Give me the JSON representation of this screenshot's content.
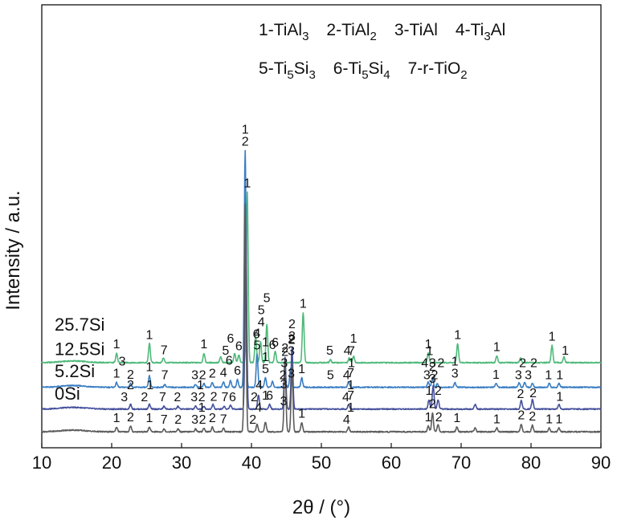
{
  "chart_data": {
    "type": "line",
    "title": "",
    "xlabel": "2θ / (°)",
    "ylabel": "Intensity / a.u.",
    "xlim": [
      10,
      90
    ],
    "xticks": [
      "10",
      "20",
      "30",
      "40",
      "50",
      "60",
      "70",
      "80",
      "90"
    ],
    "yticks_visible": false,
    "legend": {
      "placement": "top-right",
      "lines": [
        [
          {
            "n": "1",
            "txt": "TiAl",
            "sub": "3"
          },
          {
            "n": "2",
            "txt": "TiAl",
            "sub": "2"
          },
          {
            "n": "3",
            "txt": "TiAl",
            "sub": ""
          },
          {
            "n": "4",
            "txt": "Ti",
            "sub": "3",
            "txt2": "Al"
          }
        ],
        [
          {
            "n": "5",
            "txt": "Ti",
            "sub": "5",
            "txt2": "Si",
            "sub2": "3"
          },
          {
            "n": "6",
            "txt": "Ti",
            "sub": "5",
            "txt2": "Si",
            "sub2": "4"
          },
          {
            "n": "7",
            "txt": "r-TiO",
            "sub": "2"
          }
        ]
      ]
    },
    "series": [
      {
        "name": "25.7Si",
        "color": "#4fb97a",
        "baseline": 0.78,
        "peaks": [
          [
            20.7,
            0.1
          ],
          [
            25.4,
            0.2
          ],
          [
            27.4,
            0.05
          ],
          [
            33.2,
            0.1
          ],
          [
            35.6,
            0.06
          ],
          [
            37.6,
            0.1
          ],
          [
            38.2,
            0.08
          ],
          [
            39.4,
            1.8
          ],
          [
            40.6,
            0.28
          ],
          [
            41.3,
            0.22
          ],
          [
            42.2,
            0.4
          ],
          [
            43.4,
            0.12
          ],
          [
            47.4,
            0.53
          ],
          [
            51.3,
            0.03
          ],
          [
            54.0,
            0.05
          ],
          [
            54.6,
            0.07
          ],
          [
            65.3,
            0.1
          ],
          [
            69.5,
            0.2
          ],
          [
            75.1,
            0.07
          ],
          [
            78.5,
            0.05
          ],
          [
            83.0,
            0.18
          ],
          [
            84.7,
            0.06
          ]
        ],
        "peak_labels": [
          {
            "x": 20.7,
            "label": "1"
          },
          {
            "x": 25.4,
            "label": "1"
          },
          {
            "x": 27.5,
            "label": "7"
          },
          {
            "x": 33.2,
            "label": "1"
          },
          {
            "x": 36.3,
            "label": "5"
          },
          {
            "x": 37.0,
            "label": "6"
          },
          {
            "x": 38.2,
            "label": "6"
          },
          {
            "x": 39.4,
            "label": "1"
          },
          {
            "x": 40.7,
            "label": "6"
          },
          {
            "x": 41.4,
            "label": "4"
          },
          {
            "x": 41.4,
            "label": "5"
          },
          {
            "x": 42.0,
            "label": "1"
          },
          {
            "x": 42.2,
            "label": "5"
          },
          {
            "x": 43.4,
            "label": "6"
          },
          {
            "x": 47.4,
            "label": "1"
          },
          {
            "x": 51.2,
            "label": "5"
          },
          {
            "x": 53.7,
            "label": "4"
          },
          {
            "x": 54.6,
            "label": "1"
          },
          {
            "x": 65.3,
            "label": "1"
          },
          {
            "x": 69.5,
            "label": "1"
          },
          {
            "x": 75.1,
            "label": "1"
          },
          {
            "x": 83.0,
            "label": "1"
          },
          {
            "x": 84.9,
            "label": "1"
          }
        ]
      },
      {
        "name": "12.5Si",
        "color": "#3a7ec2",
        "baseline": 0.52,
        "peaks": [
          [
            20.7,
            0.05
          ],
          [
            22.7,
            0.04
          ],
          [
            25.4,
            0.12
          ],
          [
            27.6,
            0.03
          ],
          [
            32.0,
            0.03
          ],
          [
            33.2,
            0.04
          ],
          [
            34.4,
            0.05
          ],
          [
            36.0,
            0.06
          ],
          [
            37.0,
            0.07
          ],
          [
            38.0,
            0.08
          ],
          [
            39.1,
            2.5
          ],
          [
            40.8,
            0.35
          ],
          [
            42.0,
            0.1
          ],
          [
            43.0,
            0.06
          ],
          [
            44.8,
            0.12
          ],
          [
            45.6,
            0.2
          ],
          [
            47.2,
            0.1
          ],
          [
            53.9,
            0.06
          ],
          [
            65.3,
            0.06
          ],
          [
            65.9,
            0.1
          ],
          [
            66.6,
            0.04
          ],
          [
            69.1,
            0.05
          ],
          [
            75.0,
            0.04
          ],
          [
            78.3,
            0.05
          ],
          [
            79.1,
            0.05
          ],
          [
            80.2,
            0.04
          ],
          [
            82.6,
            0.04
          ],
          [
            84.0,
            0.04
          ]
        ],
        "peak_labels": [
          {
            "x": 20.7,
            "label": "1"
          },
          {
            "x": 21.5,
            "label": "3"
          },
          {
            "x": 22.7,
            "label": "2"
          },
          {
            "x": 25.4,
            "label": "1"
          },
          {
            "x": 27.6,
            "label": "7"
          },
          {
            "x": 31.9,
            "label": "3"
          },
          {
            "x": 33.0,
            "label": "2"
          },
          {
            "x": 34.4,
            "label": "2"
          },
          {
            "x": 36.0,
            "label": "4"
          },
          {
            "x": 36.8,
            "label": "6"
          },
          {
            "x": 38.0,
            "label": "6"
          },
          {
            "x": 39.1,
            "label": "2"
          },
          {
            "x": 39.1,
            "label": "1"
          },
          {
            "x": 40.8,
            "label": "5"
          },
          {
            "x": 40.8,
            "label": "4"
          },
          {
            "x": 42.0,
            "label": "5"
          },
          {
            "x": 42.0,
            "label": "1"
          },
          {
            "x": 43.0,
            "label": "6"
          },
          {
            "x": 44.5,
            "label": "2"
          },
          {
            "x": 44.7,
            "label": "3"
          },
          {
            "x": 45.7,
            "label": "3"
          },
          {
            "x": 45.7,
            "label": "2"
          },
          {
            "x": 47.2,
            "label": "1"
          },
          {
            "x": 51.3,
            "label": "5"
          },
          {
            "x": 53.6,
            "label": "4"
          },
          {
            "x": 54.3,
            "label": "1"
          },
          {
            "x": 54.3,
            "label": "7"
          },
          {
            "x": 65.1,
            "label": "3"
          },
          {
            "x": 65.9,
            "label": "3"
          },
          {
            "x": 65.5,
            "label": "1"
          },
          {
            "x": 66.2,
            "label": "2"
          },
          {
            "x": 64.8,
            "label": "4"
          },
          {
            "x": 67.1,
            "label": "2"
          },
          {
            "x": 69.1,
            "label": "3"
          },
          {
            "x": 69.1,
            "label": "1"
          },
          {
            "x": 75.0,
            "label": "1"
          },
          {
            "x": 78.2,
            "label": "3"
          },
          {
            "x": 78.8,
            "label": "2"
          },
          {
            "x": 79.6,
            "label": "3"
          },
          {
            "x": 80.4,
            "label": "2"
          },
          {
            "x": 82.5,
            "label": "1"
          },
          {
            "x": 84.1,
            "label": "1"
          }
        ]
      },
      {
        "name": "5.2Si",
        "color": "#45509b",
        "baseline": 0.29,
        "peaks": [
          [
            22.7,
            0.05
          ],
          [
            25.4,
            0.05
          ],
          [
            27.5,
            0.03
          ],
          [
            29.5,
            0.03
          ],
          [
            32.0,
            0.03
          ],
          [
            33.2,
            0.03
          ],
          [
            34.5,
            0.05
          ],
          [
            36.1,
            0.03
          ],
          [
            37.0,
            0.04
          ],
          [
            39.2,
            1.8
          ],
          [
            41.0,
            0.15
          ],
          [
            42.6,
            0.05
          ],
          [
            44.8,
            0.55
          ],
          [
            45.8,
            0.65
          ],
          [
            53.9,
            0.05
          ],
          [
            65.4,
            0.1
          ],
          [
            66.0,
            0.25
          ],
          [
            66.7,
            0.1
          ],
          [
            72.0,
            0.05
          ],
          [
            78.6,
            0.09
          ],
          [
            80.2,
            0.1
          ],
          [
            84.0,
            0.05
          ]
        ],
        "peak_labels": [
          {
            "x": 21.8,
            "label": "3"
          },
          {
            "x": 22.7,
            "label": "2"
          },
          {
            "x": 24.7,
            "label": "2"
          },
          {
            "x": 25.5,
            "label": "1"
          },
          {
            "x": 27.3,
            "label": "7"
          },
          {
            "x": 29.4,
            "label": "2"
          },
          {
            "x": 31.8,
            "label": "3"
          },
          {
            "x": 32.7,
            "label": "1"
          },
          {
            "x": 32.9,
            "label": "2"
          },
          {
            "x": 34.6,
            "label": "2"
          },
          {
            "x": 36.2,
            "label": "7"
          },
          {
            "x": 37.3,
            "label": "6"
          },
          {
            "x": 40.4,
            "label": "2"
          },
          {
            "x": 41.1,
            "label": "4"
          },
          {
            "x": 42.6,
            "label": "6"
          },
          {
            "x": 44.6,
            "label": "3"
          },
          {
            "x": 44.8,
            "label": "2"
          },
          {
            "x": 45.8,
            "label": "3"
          },
          {
            "x": 45.8,
            "label": "2"
          },
          {
            "x": 53.5,
            "label": "4"
          },
          {
            "x": 54.2,
            "label": "1"
          },
          {
            "x": 54.2,
            "label": "7"
          },
          {
            "x": 65.4,
            "label": "1"
          },
          {
            "x": 65.9,
            "label": "3"
          },
          {
            "x": 65.9,
            "label": "2"
          },
          {
            "x": 66.7,
            "label": "2"
          },
          {
            "x": 78.5,
            "label": "2"
          },
          {
            "x": 80.3,
            "label": "2"
          },
          {
            "x": 84.1,
            "label": "1"
          }
        ]
      },
      {
        "name": "0Si",
        "color": "#5c5c5c",
        "baseline": 0.05,
        "peaks": [
          [
            20.7,
            0.05
          ],
          [
            22.7,
            0.06
          ],
          [
            25.4,
            0.05
          ],
          [
            27.5,
            0.03
          ],
          [
            29.5,
            0.03
          ],
          [
            32.0,
            0.03
          ],
          [
            33.2,
            0.04
          ],
          [
            34.4,
            0.05
          ],
          [
            36.0,
            0.04
          ],
          [
            39.1,
            2.4
          ],
          [
            40.8,
            0.08
          ],
          [
            42.0,
            0.1
          ],
          [
            44.8,
            0.75
          ],
          [
            45.8,
            0.7
          ],
          [
            47.2,
            0.1
          ],
          [
            53.9,
            0.05
          ],
          [
            65.3,
            0.06
          ],
          [
            65.9,
            0.2
          ],
          [
            66.7,
            0.08
          ],
          [
            69.4,
            0.05
          ],
          [
            72.0,
            0.04
          ],
          [
            75.1,
            0.04
          ],
          [
            78.6,
            0.08
          ],
          [
            80.2,
            0.07
          ],
          [
            82.6,
            0.04
          ],
          [
            84.0,
            0.04
          ]
        ],
        "peak_labels": [
          {
            "x": 20.7,
            "label": "1"
          },
          {
            "x": 22.7,
            "label": "2"
          },
          {
            "x": 25.4,
            "label": "1"
          },
          {
            "x": 27.5,
            "label": "7"
          },
          {
            "x": 29.5,
            "label": "2"
          },
          {
            "x": 31.9,
            "label": "3"
          },
          {
            "x": 32.9,
            "label": "1"
          },
          {
            "x": 33.0,
            "label": "2"
          },
          {
            "x": 34.4,
            "label": "2"
          },
          {
            "x": 36.0,
            "label": "7"
          },
          {
            "x": 40.2,
            "label": "2"
          },
          {
            "x": 41.0,
            "label": "4"
          },
          {
            "x": 42.0,
            "label": "1"
          },
          {
            "x": 44.6,
            "label": "3"
          },
          {
            "x": 44.8,
            "label": "2"
          },
          {
            "x": 45.7,
            "label": "3"
          },
          {
            "x": 45.8,
            "label": "2"
          },
          {
            "x": 47.2,
            "label": "1"
          },
          {
            "x": 53.6,
            "label": "4"
          },
          {
            "x": 54.2,
            "label": "1"
          },
          {
            "x": 54.2,
            "label": "7"
          },
          {
            "x": 65.3,
            "label": "1"
          },
          {
            "x": 65.9,
            "label": "2"
          },
          {
            "x": 66.8,
            "label": "2"
          },
          {
            "x": 69.4,
            "label": "1"
          },
          {
            "x": 75.1,
            "label": "1"
          },
          {
            "x": 78.6,
            "label": "2"
          },
          {
            "x": 80.2,
            "label": "2"
          },
          {
            "x": 82.6,
            "label": "1"
          },
          {
            "x": 84.0,
            "label": "1"
          }
        ]
      }
    ]
  }
}
